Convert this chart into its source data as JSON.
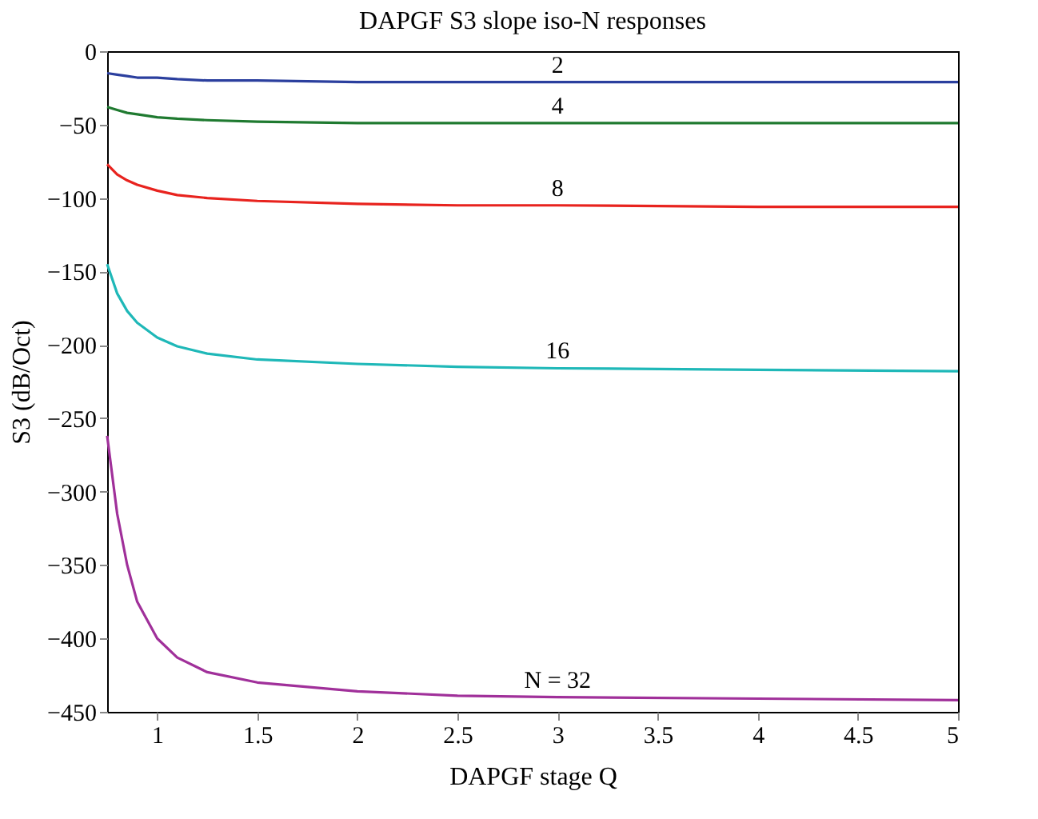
{
  "chart_data": {
    "type": "line",
    "title": "DAPGF S3 slope iso-N responses",
    "xlabel": "DAPGF stage Q",
    "ylabel": "S3 (dB/Oct)",
    "x": [
      0.75,
      0.8,
      0.85,
      0.9,
      1,
      1.1,
      1.25,
      1.5,
      2,
      2.5,
      3,
      4,
      5
    ],
    "series": [
      {
        "name": "2",
        "color": "#2b3f9e",
        "values": [
          -15,
          -16,
          -17,
          -18,
          -18,
          -19,
          -20,
          -20,
          -21,
          -21,
          -21,
          -21,
          -21
        ]
      },
      {
        "name": "4",
        "color": "#1f7a30",
        "values": [
          -38,
          -40,
          -42,
          -43,
          -45,
          -46,
          -47,
          -48,
          -49,
          -49,
          -49,
          -49,
          -49
        ]
      },
      {
        "name": "8",
        "color": "#e8231e",
        "values": [
          -77,
          -84,
          -88,
          -91,
          -95,
          -98,
          -100,
          -102,
          -104,
          -105,
          -105,
          -106,
          -106
        ]
      },
      {
        "name": "16",
        "color": "#1fb8b8",
        "values": [
          -145,
          -165,
          -177,
          -185,
          -195,
          -201,
          -206,
          -210,
          -213,
          -215,
          -216,
          -217,
          -218
        ]
      },
      {
        "name": "N = 32",
        "color": "#a0309a",
        "values": [
          -262,
          -315,
          -350,
          -375,
          -400,
          -413,
          -423,
          -430,
          -436,
          -439,
          -440,
          -441,
          -442
        ]
      }
    ],
    "xlim": [
      0.75,
      5
    ],
    "xticks": [
      1,
      1.5,
      2,
      2.5,
      3,
      3.5,
      4,
      4.5,
      5
    ],
    "ylim": [
      -450,
      0
    ],
    "yticks": [
      -450,
      -400,
      -350,
      -300,
      -250,
      -200,
      -150,
      -100,
      -50,
      0
    ],
    "legend": false,
    "line_style": "solid"
  }
}
